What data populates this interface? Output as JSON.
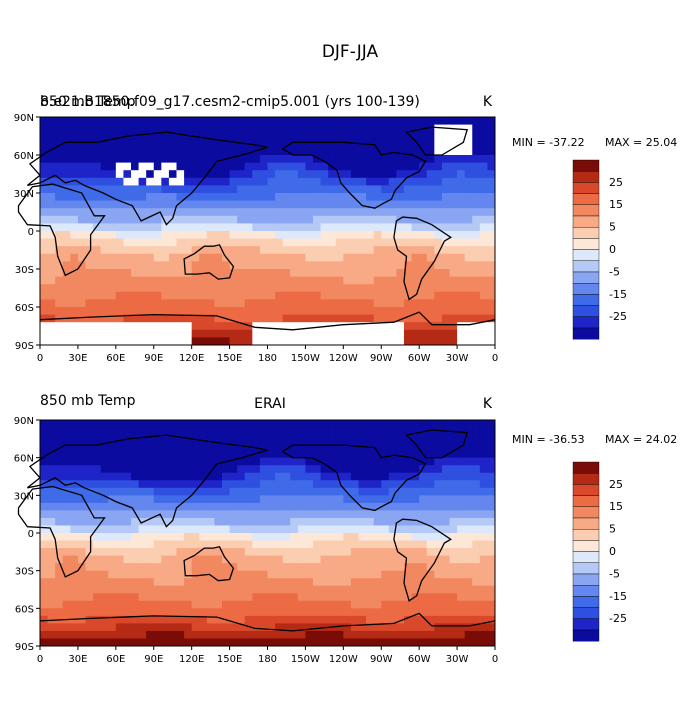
{
  "page_title": "DJF-JJA",
  "colorbar_levels": [
    -30,
    -25,
    -20,
    -15,
    -10,
    -5,
    -2,
    0,
    2,
    5,
    10,
    15,
    20,
    25,
    30
  ],
  "colorbar_labels": [
    "25",
    "15",
    "5",
    "0",
    "-5",
    "-15",
    "-25"
  ],
  "colors": {
    "min": "#08087a",
    "scale": [
      "#0b0ba0",
      "#1f24c8",
      "#2f4fe0",
      "#3f6ae8",
      "#6387ee",
      "#8aa6f2",
      "#b5c9f7",
      "#dde8fb",
      "#fde7d6",
      "#fbcdb1",
      "#f7aa85",
      "#f28860",
      "#ec6a44",
      "#d9482a",
      "#b42a14",
      "#7a0c08"
    ]
  },
  "panels": [
    {
      "id": "model",
      "left_title": "850 mb Temp",
      "overlay_title": "b.e21.B1850.f09_g17.cesm2-cmip5.001 (yrs 100-139)",
      "units": "K",
      "min_label": "MIN = -37.22",
      "max_label": "MAX =  25.04",
      "min": -37.22,
      "max": 25.04
    },
    {
      "id": "obs",
      "left_title": "850 mb Temp",
      "center_title": "ERAI",
      "units": "K",
      "min_label": "MIN = -36.53",
      "max_label": "MAX =  24.02",
      "min": -36.53,
      "max": 24.02
    }
  ],
  "map_axes": {
    "y_labels": [
      "90N",
      "60N",
      "30N",
      "0",
      "30S",
      "60S",
      "90S"
    ],
    "x_labels": [
      "0",
      "30E",
      "60E",
      "90E",
      "120E",
      "150E",
      "180",
      "150W",
      "120W",
      "90W",
      "60W",
      "30W",
      "0"
    ]
  }
}
